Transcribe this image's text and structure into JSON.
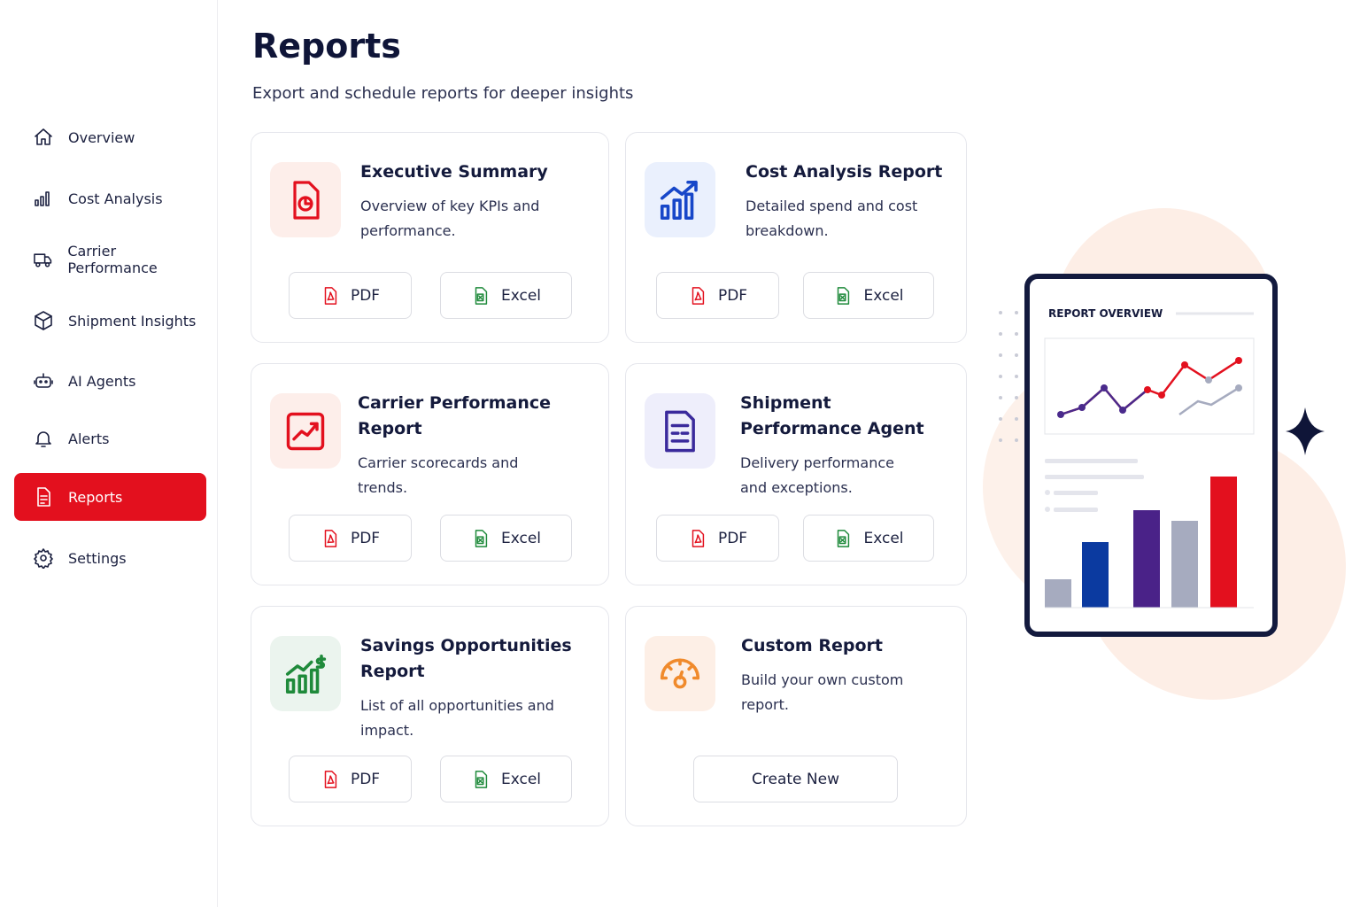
{
  "sidebar": {
    "nav": [
      "Overview",
      "Cost Analysis",
      "Carrier Performance",
      "Shipment Insights",
      "AI Agents",
      "Alerts",
      "Reports",
      "Settings"
    ]
  },
  "header": {
    "title": "Reports",
    "subtitle": "Export and schedule reports for deeper insights"
  },
  "cards": [
    {
      "title": "Executive Summary",
      "description": "Overview of key KPIs and performance.",
      "buttons": [
        "PDF",
        "Excel"
      ]
    },
    {
      "title": "Cost Analysis Report",
      "description": "Detailed spend and cost breakdown.",
      "buttons": [
        "PDF",
        "Excel"
      ]
    },
    {
      "title": "Carrier Performance Report",
      "description": "Carrier scorecards and trends.",
      "buttons": [
        "PDF",
        "Excel"
      ]
    },
    {
      "title": "Shipment Performance Agent",
      "description": "Delivery performance and exceptions.",
      "buttons": [
        "PDF",
        "Excel"
      ]
    },
    {
      "title": "Savings Opportunities Report",
      "description": "List of all opportunities and impact.",
      "buttons": [
        "PDF",
        "Excel"
      ]
    },
    {
      "title": "Custom Report",
      "description": "Build your own custom report.",
      "buttons": [
        "Create New"
      ]
    }
  ],
  "illustration": {
    "title": "REPORT OVERVIEW"
  }
}
